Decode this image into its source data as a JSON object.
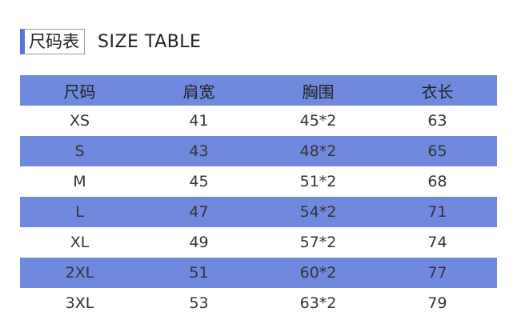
{
  "header": {
    "title": "尺码表",
    "subtitle": "SIZE TABLE"
  },
  "table": {
    "columns": [
      "尺码",
      "肩宽",
      "胸围",
      "衣长"
    ],
    "rows": [
      [
        "XS",
        41,
        "45*2",
        63
      ],
      [
        "S",
        43,
        "48*2",
        65
      ],
      [
        "M",
        45,
        "51*2",
        68
      ],
      [
        "L",
        47,
        "54*2",
        71
      ],
      [
        "XL",
        49,
        "57*2",
        74
      ],
      [
        "2XL",
        51,
        "60*2",
        77
      ],
      [
        "3XL",
        53,
        "63*2",
        79
      ]
    ]
  }
}
